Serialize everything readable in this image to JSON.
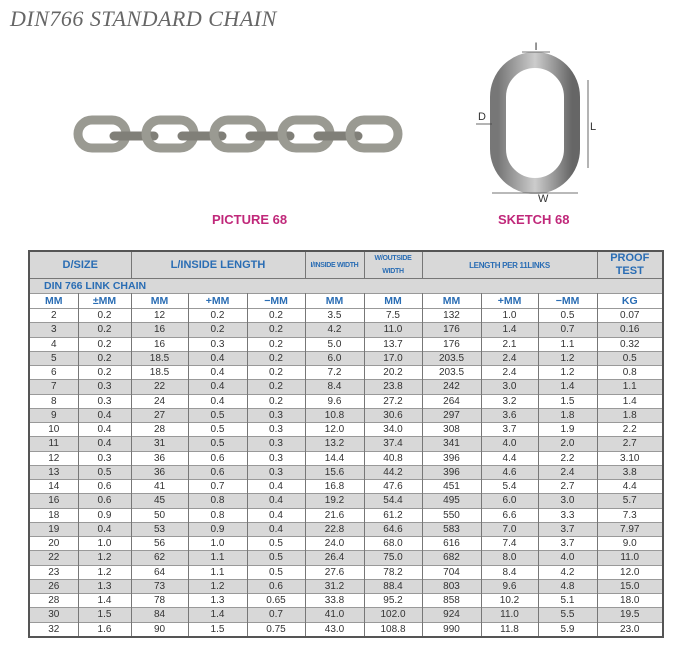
{
  "title": "DIN766 STANDARD CHAIN",
  "picture_caption": "PICTURE 68",
  "sketch_caption": "SKETCH 68",
  "sketch_labels": {
    "d": "D",
    "l": "L",
    "w": "W",
    "i": "I"
  },
  "table": {
    "group_headers": [
      "D/SIZE",
      "L/INSIDE LENGTH",
      "I/INSIDE WIDTH",
      "W/OUTSIDE WIDTH",
      "LENGTH PER 11LINKS",
      "PROOF TEST"
    ],
    "section": "DIN 766 LINK CHAIN",
    "units": [
      "MM",
      "±MM",
      "MM",
      "+MM",
      "−MM",
      "MM",
      "MM",
      "MM",
      "+MM",
      "−MM",
      "KG"
    ],
    "rows": [
      [
        "2",
        "0.2",
        "12",
        "0.2",
        "0.2",
        "3.5",
        "7.5",
        "132",
        "1.0",
        "0.5",
        "0.07"
      ],
      [
        "3",
        "0.2",
        "16",
        "0.2",
        "0.2",
        "4.2",
        "11.0",
        "176",
        "1.4",
        "0.7",
        "0.16"
      ],
      [
        "4",
        "0.2",
        "16",
        "0.3",
        "0.2",
        "5.0",
        "13.7",
        "176",
        "2.1",
        "1.1",
        "0.32"
      ],
      [
        "5",
        "0.2",
        "18.5",
        "0.4",
        "0.2",
        "6.0",
        "17.0",
        "203.5",
        "2.4",
        "1.2",
        "0.5"
      ],
      [
        "6",
        "0.2",
        "18.5",
        "0.4",
        "0.2",
        "7.2",
        "20.2",
        "203.5",
        "2.4",
        "1.2",
        "0.8"
      ],
      [
        "7",
        "0.3",
        "22",
        "0.4",
        "0.2",
        "8.4",
        "23.8",
        "242",
        "3.0",
        "1.4",
        "1.1"
      ],
      [
        "8",
        "0.3",
        "24",
        "0.4",
        "0.2",
        "9.6",
        "27.2",
        "264",
        "3.2",
        "1.5",
        "1.4"
      ],
      [
        "9",
        "0.4",
        "27",
        "0.5",
        "0.3",
        "10.8",
        "30.6",
        "297",
        "3.6",
        "1.8",
        "1.8"
      ],
      [
        "10",
        "0.4",
        "28",
        "0.5",
        "0.3",
        "12.0",
        "34.0",
        "308",
        "3.7",
        "1.9",
        "2.2"
      ],
      [
        "11",
        "0.4",
        "31",
        "0.5",
        "0.3",
        "13.2",
        "37.4",
        "341",
        "4.0",
        "2.0",
        "2.7"
      ],
      [
        "12",
        "0.3",
        "36",
        "0.6",
        "0.3",
        "14.4",
        "40.8",
        "396",
        "4.4",
        "2.2",
        "3.10"
      ],
      [
        "13",
        "0.5",
        "36",
        "0.6",
        "0.3",
        "15.6",
        "44.2",
        "396",
        "4.6",
        "2.4",
        "3.8"
      ],
      [
        "14",
        "0.6",
        "41",
        "0.7",
        "0.4",
        "16.8",
        "47.6",
        "451",
        "5.4",
        "2.7",
        "4.4"
      ],
      [
        "16",
        "0.6",
        "45",
        "0.8",
        "0.4",
        "19.2",
        "54.4",
        "495",
        "6.0",
        "3.0",
        "5.7"
      ],
      [
        "18",
        "0.9",
        "50",
        "0.8",
        "0.4",
        "21.6",
        "61.2",
        "550",
        "6.6",
        "3.3",
        "7.3"
      ],
      [
        "19",
        "0.4",
        "53",
        "0.9",
        "0.4",
        "22.8",
        "64.6",
        "583",
        "7.0",
        "3.7",
        "7.97"
      ],
      [
        "20",
        "1.0",
        "56",
        "1.0",
        "0.5",
        "24.0",
        "68.0",
        "616",
        "7.4",
        "3.7",
        "9.0"
      ],
      [
        "22",
        "1.2",
        "62",
        "1.1",
        "0.5",
        "26.4",
        "75.0",
        "682",
        "8.0",
        "4.0",
        "11.0"
      ],
      [
        "23",
        "1.2",
        "64",
        "1.1",
        "0.5",
        "27.6",
        "78.2",
        "704",
        "8.4",
        "4.2",
        "12.0"
      ],
      [
        "26",
        "1.3",
        "73",
        "1.2",
        "0.6",
        "31.2",
        "88.4",
        "803",
        "9.6",
        "4.8",
        "15.0"
      ],
      [
        "28",
        "1.4",
        "78",
        "1.3",
        "0.65",
        "33.8",
        "95.2",
        "858",
        "10.2",
        "5.1",
        "18.0"
      ],
      [
        "30",
        "1.5",
        "84",
        "1.4",
        "0.7",
        "41.0",
        "102.0",
        "924",
        "11.0",
        "5.5",
        "19.5"
      ],
      [
        "32",
        "1.6",
        "90",
        "1.5",
        "0.75",
        "43.0",
        "108.8",
        "990",
        "11.8",
        "5.9",
        "23.0"
      ]
    ]
  }
}
